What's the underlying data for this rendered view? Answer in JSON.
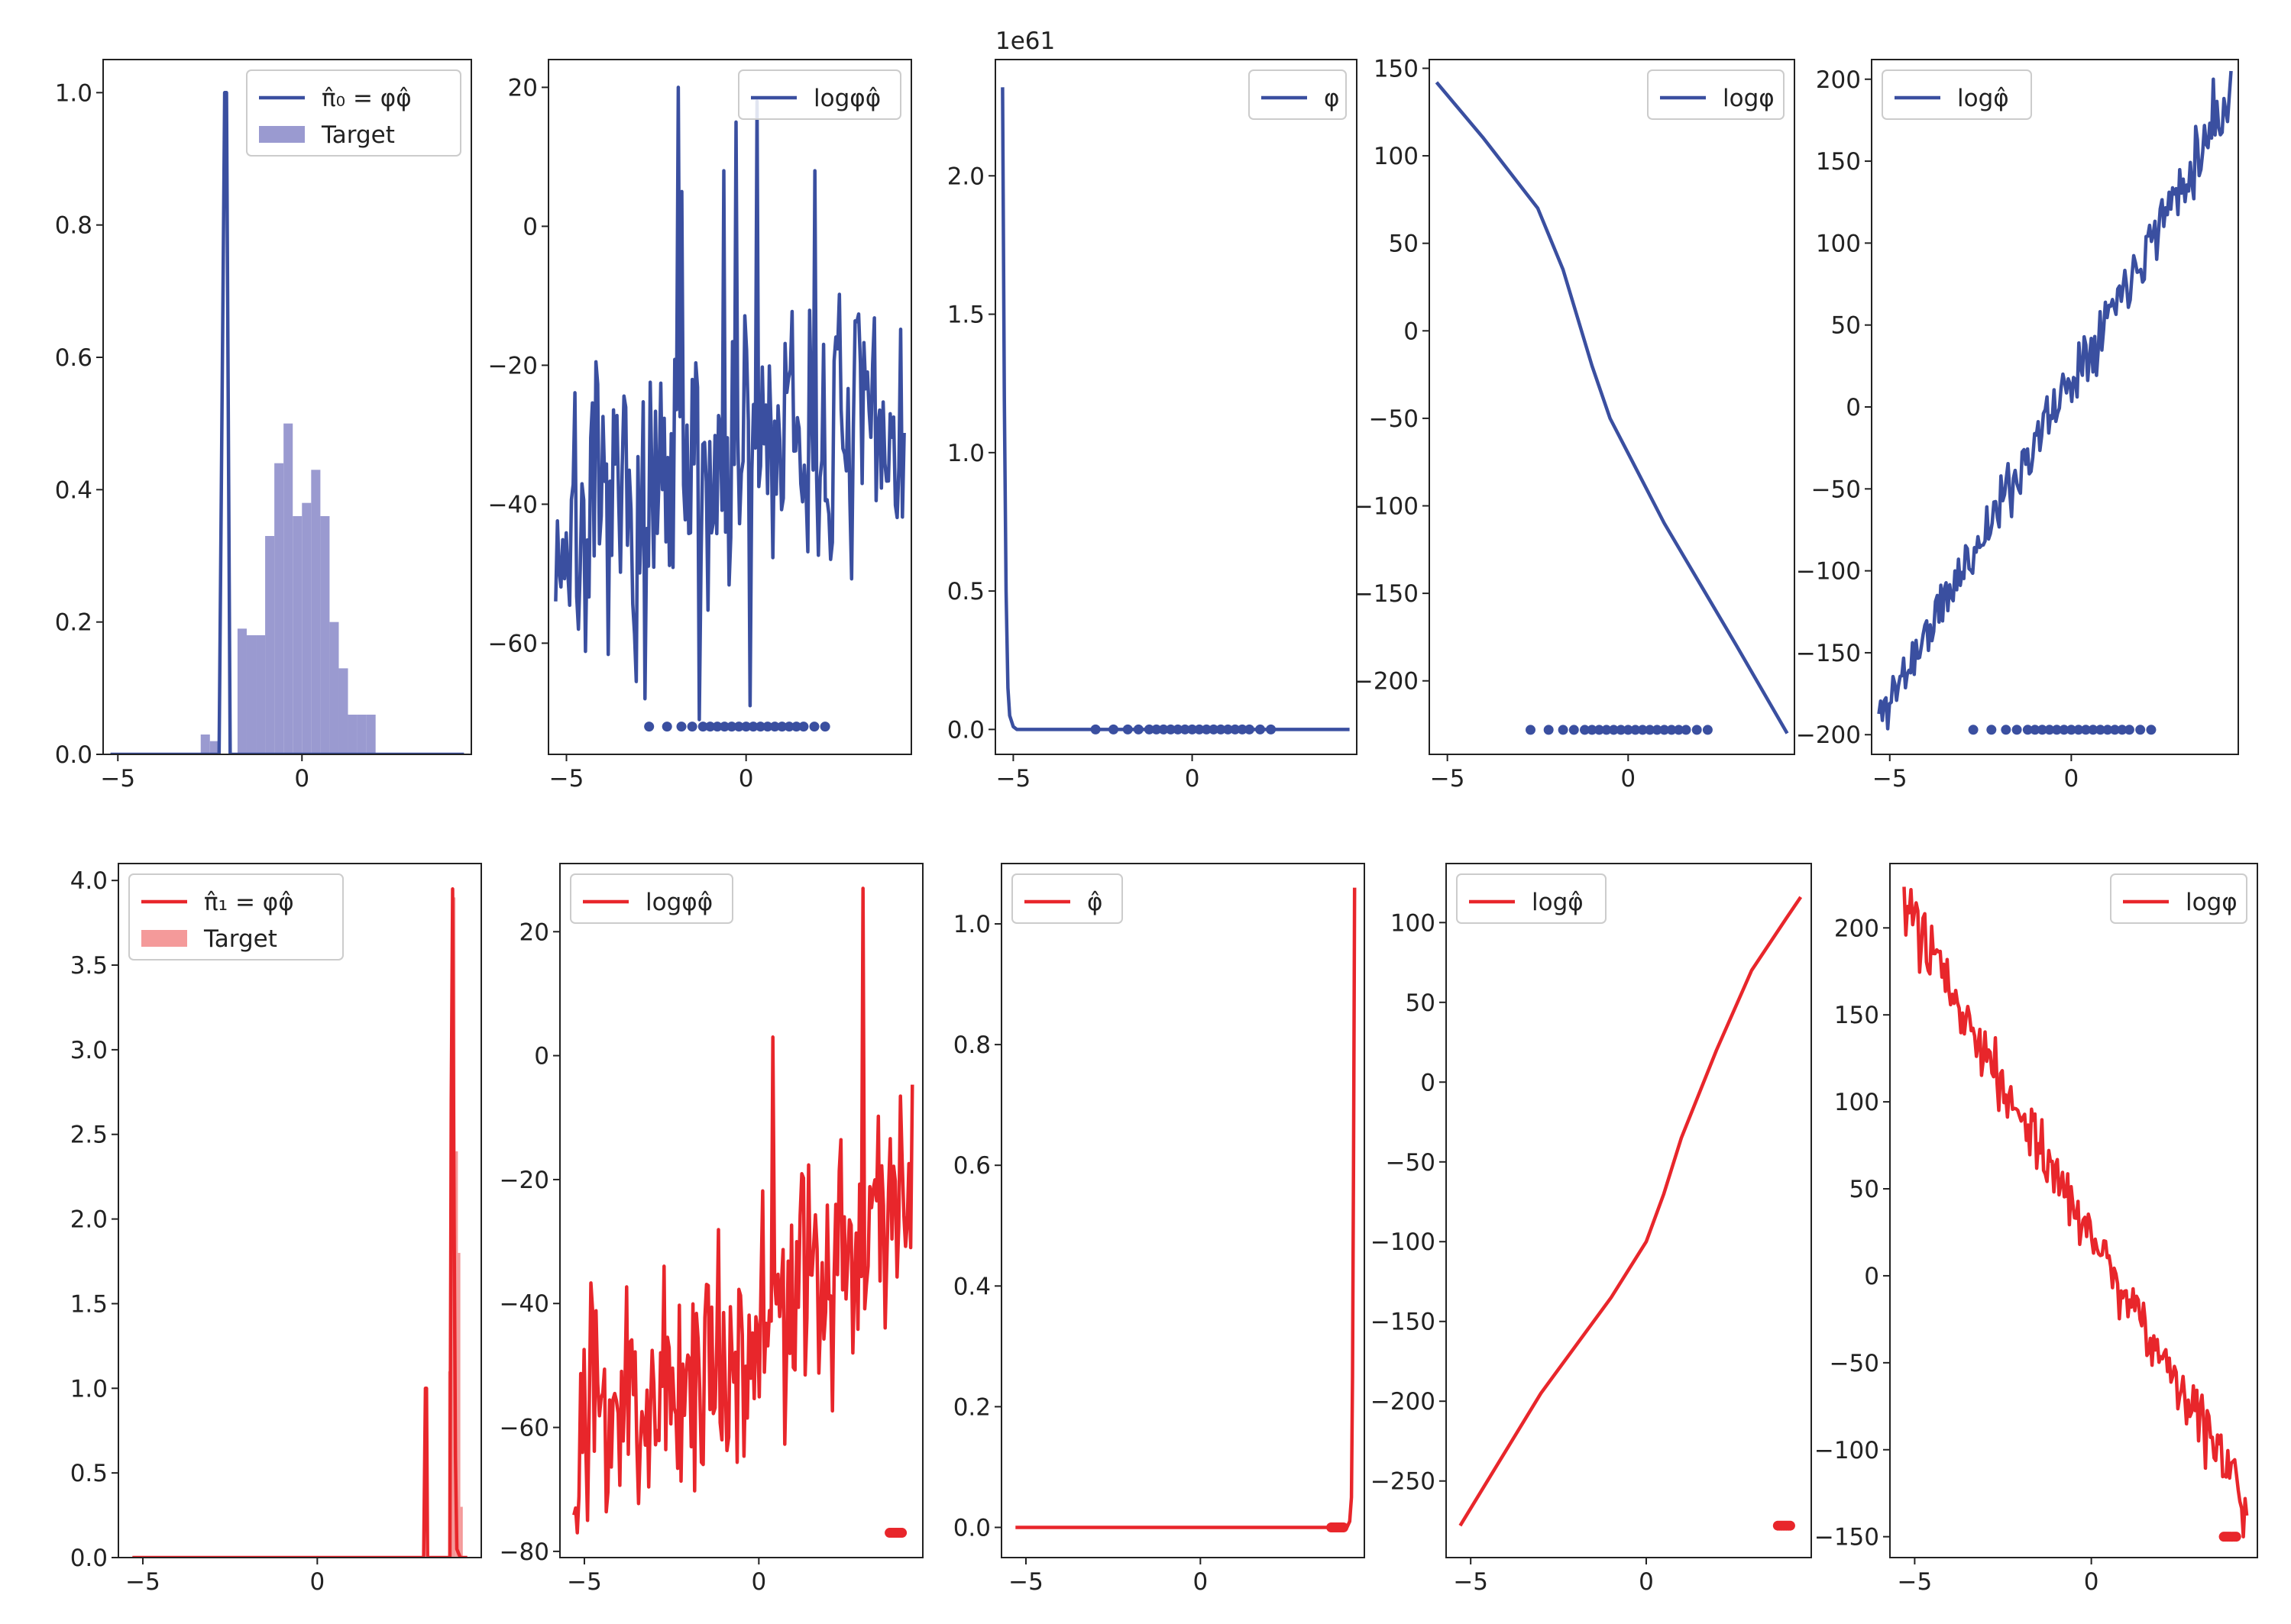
{
  "figure": {
    "layout": "2 rows x 5 columns"
  },
  "colors": {
    "blue": "#3a4fa0",
    "blue_fill": "#9a9ad0",
    "red": "#e8262b",
    "red_fill": "#f49a9a",
    "axis": "#222222",
    "background": "#ffffff"
  },
  "chart_data": [
    {
      "id": "r1c1",
      "type": "bar",
      "color": "blue",
      "xlim": [
        -5.4,
        4.6
      ],
      "ylim": [
        0,
        1.05
      ],
      "xticks": [
        {
          "v": -5,
          "label": "−5"
        },
        {
          "v": 0,
          "label": "0"
        }
      ],
      "yticks": [
        {
          "v": 0,
          "label": "0.0"
        },
        {
          "v": 0.2,
          "label": "0.2"
        },
        {
          "v": 0.4,
          "label": "0.4"
        },
        {
          "v": 0.6,
          "label": "0.6"
        },
        {
          "v": 0.8,
          "label": "0.8"
        },
        {
          "v": 1.0,
          "label": "1.0"
        }
      ],
      "histogram": {
        "name": "Target",
        "bin_width": 0.25,
        "edges": [
          -2.75,
          -2.5,
          -2.25,
          -2.0,
          -1.75,
          -1.5,
          -1.25,
          -1.0,
          -0.75,
          -0.5,
          -0.25,
          0.0,
          0.25,
          0.5,
          0.75,
          1.0,
          1.25,
          1.5,
          1.75,
          2.0
        ],
        "values": [
          0.03,
          0.02,
          0.0,
          0.0,
          0.19,
          0.18,
          0.18,
          0.33,
          0.44,
          0.5,
          0.36,
          0.38,
          0.43,
          0.36,
          0.2,
          0.13,
          0.06,
          0.06,
          0.06
        ]
      },
      "series": [
        {
          "name": "π̂₀ = φφ̂",
          "kind": "line",
          "x": [
            -5.2,
            -2.25,
            -2.1,
            -2.05,
            -1.95,
            4.4
          ],
          "y": [
            0.0,
            0.0,
            1.0,
            1.0,
            0.0,
            0.0
          ]
        }
      ],
      "legend": {
        "loc": "upper right",
        "entries": [
          "π̂₀ =  φφ̂",
          "Target"
        ]
      }
    },
    {
      "id": "r1c2",
      "type": "line",
      "color": "blue",
      "xlim": [
        -5.5,
        4.6
      ],
      "ylim": [
        -76,
        24
      ],
      "xticks": [
        {
          "v": -5,
          "label": "−5"
        },
        {
          "v": 0,
          "label": "0"
        }
      ],
      "yticks": [
        {
          "v": -60,
          "label": "−60"
        },
        {
          "v": -40,
          "label": "−40"
        },
        {
          "v": -20,
          "label": "−20"
        },
        {
          "v": 0,
          "label": "0"
        },
        {
          "v": 20,
          "label": "20"
        }
      ],
      "series": [
        {
          "name": "logφφ̂",
          "kind": "noisy",
          "x_start": -5.3,
          "x_end": 4.4,
          "n": 200,
          "seed": 7,
          "trend_x": [
            -5.3,
            -2.0,
            0.0,
            4.4
          ],
          "trend_y": [
            -45,
            -40,
            -32,
            -30
          ],
          "noise": 10,
          "spikes": [
            [
              -1.9,
              20
            ],
            [
              -1.8,
              5
            ],
            [
              -1.3,
              -71
            ],
            [
              0.3,
              18
            ],
            [
              -0.3,
              15
            ],
            [
              1.9,
              8
            ],
            [
              -2.8,
              -68
            ],
            [
              0.1,
              -69
            ],
            [
              -0.6,
              8
            ]
          ]
        }
      ],
      "rug": {
        "x": [
          -2.7,
          -2.2,
          -1.8,
          -1.5,
          -1.2,
          -1.0,
          -0.8,
          -0.6,
          -0.4,
          -0.2,
          0.0,
          0.2,
          0.4,
          0.6,
          0.8,
          1.0,
          1.2,
          1.4,
          1.6,
          1.9,
          2.2
        ],
        "y": -72
      },
      "legend": {
        "loc": "upper right",
        "entries": [
          "logφφ̂"
        ]
      }
    },
    {
      "id": "r1c3",
      "type": "line",
      "color": "blue",
      "xlim": [
        -5.5,
        4.6
      ],
      "ylim": [
        -0.09,
        2.42
      ],
      "offset_label": "1e61",
      "xticks": [
        {
          "v": -5,
          "label": "−5"
        },
        {
          "v": 0,
          "label": "0"
        }
      ],
      "yticks": [
        {
          "v": 0,
          "label": "0.0"
        },
        {
          "v": 0.5,
          "label": "0.5"
        },
        {
          "v": 1.0,
          "label": "1.0"
        },
        {
          "v": 1.5,
          "label": "1.5"
        },
        {
          "v": 2.0,
          "label": "2.0"
        }
      ],
      "series": [
        {
          "name": "φ",
          "kind": "line",
          "x": [
            -5.3,
            -5.25,
            -5.2,
            -5.15,
            -5.1,
            -5.0,
            -4.9,
            4.4
          ],
          "y": [
            2.32,
            1.2,
            0.5,
            0.15,
            0.05,
            0.01,
            0.0,
            0.0
          ]
        }
      ],
      "rug": {
        "x": [
          -2.7,
          -2.2,
          -1.8,
          -1.5,
          -1.2,
          -1.0,
          -0.8,
          -0.6,
          -0.4,
          -0.2,
          0.0,
          0.2,
          0.4,
          0.6,
          0.8,
          1.0,
          1.2,
          1.4,
          1.6,
          1.9,
          2.2
        ],
        "y": 0
      },
      "legend": {
        "loc": "upper right",
        "entries": [
          "φ"
        ]
      }
    },
    {
      "id": "r1c4",
      "type": "line",
      "color": "blue",
      "xlim": [
        -5.5,
        4.6
      ],
      "ylim": [
        -242,
        155
      ],
      "xticks": [
        {
          "v": -5,
          "label": "−5"
        },
        {
          "v": 0,
          "label": "0"
        }
      ],
      "yticks": [
        {
          "v": -200,
          "label": "−200"
        },
        {
          "v": -150,
          "label": "−150"
        },
        {
          "v": -100,
          "label": "−100"
        },
        {
          "v": -50,
          "label": "−50"
        },
        {
          "v": 0,
          "label": "0"
        },
        {
          "v": 50,
          "label": "50"
        },
        {
          "v": 100,
          "label": "100"
        },
        {
          "v": 150,
          "label": "150"
        }
      ],
      "series": [
        {
          "name": "logφ",
          "kind": "line",
          "x": [
            -5.3,
            -4.0,
            -2.5,
            -1.8,
            -1.0,
            -0.5,
            0.0,
            1.0,
            2.0,
            3.0,
            4.4
          ],
          "y": [
            142,
            110,
            70,
            35,
            -20,
            -50,
            -70,
            -110,
            -145,
            -180,
            -230
          ]
        }
      ],
      "rug": {
        "x": [
          -2.7,
          -2.2,
          -1.8,
          -1.5,
          -1.2,
          -1.0,
          -0.8,
          -0.6,
          -0.4,
          -0.2,
          0.0,
          0.2,
          0.4,
          0.6,
          0.8,
          1.0,
          1.2,
          1.4,
          1.6,
          1.9,
          2.2
        ],
        "y": -228
      },
      "legend": {
        "loc": "upper right",
        "entries": [
          "logφ"
        ]
      }
    },
    {
      "id": "r1c5",
      "type": "line",
      "color": "blue",
      "xlim": [
        -5.5,
        4.6
      ],
      "ylim": [
        -212,
        212
      ],
      "xticks": [
        {
          "v": -5,
          "label": "−5"
        },
        {
          "v": 0,
          "label": "0"
        }
      ],
      "yticks": [
        {
          "v": -200,
          "label": "−200"
        },
        {
          "v": -150,
          "label": "−150"
        },
        {
          "v": -100,
          "label": "−100"
        },
        {
          "v": -50,
          "label": "−50"
        },
        {
          "v": 0,
          "label": "0"
        },
        {
          "v": 50,
          "label": "50"
        },
        {
          "v": 100,
          "label": "100"
        },
        {
          "v": 150,
          "label": "150"
        },
        {
          "v": 200,
          "label": "200"
        }
      ],
      "series": [
        {
          "name": "logφ̂",
          "kind": "noisy",
          "x_start": -5.3,
          "x_end": 4.4,
          "n": 200,
          "seed": 11,
          "trend_x": [
            -5.3,
            4.4
          ],
          "trend_y": [
            -190,
            190
          ],
          "noise": 9,
          "spikes": [
            [
              4.4,
              205
            ],
            [
              3.9,
              200
            ]
          ]
        }
      ],
      "rug": {
        "x": [
          -2.7,
          -2.2,
          -1.8,
          -1.5,
          -1.2,
          -1.0,
          -0.8,
          -0.6,
          -0.4,
          -0.2,
          0.0,
          0.2,
          0.4,
          0.6,
          0.8,
          1.0,
          1.2,
          1.4,
          1.6,
          1.9,
          2.2
        ],
        "y": -197
      },
      "legend": {
        "loc": "upper left",
        "entries": [
          "logφ̂"
        ]
      }
    },
    {
      "id": "r2c1",
      "type": "bar",
      "color": "red",
      "xlim": [
        -5.7,
        4.7
      ],
      "ylim": [
        0,
        4.1
      ],
      "xticks": [
        {
          "v": -5,
          "label": "−5"
        },
        {
          "v": 0,
          "label": "0"
        }
      ],
      "yticks": [
        {
          "v": 0,
          "label": "0.0"
        },
        {
          "v": 0.5,
          "label": "0.5"
        },
        {
          "v": 1.0,
          "label": "1.0"
        },
        {
          "v": 1.5,
          "label": "1.5"
        },
        {
          "v": 2.0,
          "label": "2.0"
        },
        {
          "v": 2.5,
          "label": "2.5"
        },
        {
          "v": 3.0,
          "label": "3.0"
        },
        {
          "v": 3.5,
          "label": "3.5"
        },
        {
          "v": 4.0,
          "label": "4.0"
        }
      ],
      "histogram": {
        "name": "Target",
        "bin_width": 0.07,
        "edges": [
          3.75,
          3.82,
          3.89,
          3.96,
          4.03,
          4.1,
          4.17
        ],
        "values": [
          1.1,
          2.9,
          3.9,
          2.4,
          1.8,
          0.3
        ]
      },
      "series": [
        {
          "name": "π̂₁ = φφ̂",
          "kind": "line",
          "x": [
            -5.3,
            3.05,
            3.1,
            3.13,
            3.16,
            3.8,
            3.84,
            3.88,
            3.92,
            3.96,
            4.0,
            4.1,
            4.3
          ],
          "y": [
            0.0,
            0.0,
            1.0,
            1.0,
            0.0,
            0.0,
            2.7,
            3.95,
            2.0,
            0.6,
            0.05,
            0.0,
            0.0
          ]
        }
      ],
      "legend": {
        "loc": "upper left",
        "entries": [
          "π̂₁ =  φφ̂",
          "Target"
        ]
      }
    },
    {
      "id": "r2c2",
      "type": "line",
      "color": "red",
      "xlim": [
        -5.7,
        4.7
      ],
      "ylim": [
        -81,
        31
      ],
      "xticks": [
        {
          "v": -5,
          "label": "−5"
        },
        {
          "v": 0,
          "label": "0"
        }
      ],
      "yticks": [
        {
          "v": -80,
          "label": "−80"
        },
        {
          "v": -60,
          "label": "−60"
        },
        {
          "v": -40,
          "label": "−40"
        },
        {
          "v": -20,
          "label": "−20"
        },
        {
          "v": 0,
          "label": "0"
        },
        {
          "v": 20,
          "label": "20"
        }
      ],
      "series": [
        {
          "name": "logφφ̂",
          "kind": "noisy",
          "x_start": -5.3,
          "x_end": 4.4,
          "n": 200,
          "seed": 23,
          "trend_x": [
            -5.3,
            -2.0,
            0.0,
            2.0,
            4.4
          ],
          "trend_y": [
            -60,
            -52,
            -45,
            -35,
            -18
          ],
          "noise": 10,
          "spikes": [
            [
              0.4,
              3
            ],
            [
              3.0,
              27
            ],
            [
              -5.2,
              -77
            ],
            [
              -4.9,
              -75
            ]
          ]
        }
      ],
      "rug": {
        "x": [
          3.75,
          3.8,
          3.85,
          3.9,
          3.95,
          4.0,
          4.05,
          4.1
        ],
        "y": -77
      },
      "legend": {
        "loc": "upper left",
        "entries": [
          "logφφ̂"
        ]
      }
    },
    {
      "id": "r2c3",
      "type": "line",
      "color": "red",
      "xlim": [
        -5.7,
        4.7
      ],
      "ylim": [
        -0.05,
        1.1
      ],
      "xticks": [
        {
          "v": -5,
          "label": "−5"
        },
        {
          "v": 0,
          "label": "0"
        }
      ],
      "yticks": [
        {
          "v": 0,
          "label": "0.0"
        },
        {
          "v": 0.2,
          "label": "0.2"
        },
        {
          "v": 0.4,
          "label": "0.4"
        },
        {
          "v": 0.6,
          "label": "0.6"
        },
        {
          "v": 0.8,
          "label": "0.8"
        },
        {
          "v": 1.0,
          "label": "1.0"
        }
      ],
      "series": [
        {
          "name": "φ̂",
          "kind": "line",
          "x": [
            -5.3,
            4.2,
            4.28,
            4.33,
            4.36,
            4.39,
            4.42
          ],
          "y": [
            0.0,
            0.0,
            0.01,
            0.05,
            0.25,
            0.6,
            1.06
          ]
        }
      ],
      "rug": {
        "x": [
          3.75,
          3.8,
          3.85,
          3.9,
          3.95,
          4.0,
          4.05,
          4.1
        ],
        "y": 0
      },
      "legend": {
        "loc": "upper left",
        "entries": [
          "φ̂"
        ]
      }
    },
    {
      "id": "r2c4",
      "type": "line",
      "color": "red",
      "xlim": [
        -5.7,
        4.7
      ],
      "ylim": [
        -298,
        137
      ],
      "xticks": [
        {
          "v": -5,
          "label": "−5"
        },
        {
          "v": 0,
          "label": "0"
        }
      ],
      "yticks": [
        {
          "v": -250,
          "label": "−250"
        },
        {
          "v": -200,
          "label": "−200"
        },
        {
          "v": -150,
          "label": "−150"
        },
        {
          "v": -100,
          "label": "−100"
        },
        {
          "v": -50,
          "label": "−50"
        },
        {
          "v": 0,
          "label": "0"
        },
        {
          "v": 50,
          "label": "50"
        },
        {
          "v": 100,
          "label": "100"
        }
      ],
      "series": [
        {
          "name": "logφ̂",
          "kind": "line",
          "x": [
            -5.3,
            -3.0,
            -1.0,
            0.0,
            0.5,
            1.0,
            2.0,
            3.0,
            4.0,
            4.4
          ],
          "y": [
            -278,
            -195,
            -135,
            -100,
            -70,
            -35,
            20,
            70,
            103,
            116
          ]
        }
      ],
      "rug": {
        "x": [
          3.75,
          3.8,
          3.85,
          3.9,
          3.95,
          4.0,
          4.05,
          4.1
        ],
        "y": -278
      },
      "legend": {
        "loc": "upper left",
        "entries": [
          "logφ̂"
        ]
      }
    },
    {
      "id": "r2c5",
      "type": "line",
      "color": "red",
      "xlim": [
        -5.7,
        4.7
      ],
      "ylim": [
        -162,
        237
      ],
      "xticks": [
        {
          "v": -5,
          "label": "−5"
        },
        {
          "v": 0,
          "label": "0"
        }
      ],
      "yticks": [
        {
          "v": -150,
          "label": "−150"
        },
        {
          "v": -100,
          "label": "−100"
        },
        {
          "v": -50,
          "label": "−50"
        },
        {
          "v": 0,
          "label": "0"
        },
        {
          "v": 50,
          "label": "50"
        },
        {
          "v": 100,
          "label": "100"
        },
        {
          "v": 150,
          "label": "150"
        },
        {
          "v": 200,
          "label": "200"
        }
      ],
      "series": [
        {
          "name": "logφ",
          "kind": "noisy",
          "x_start": -5.3,
          "x_end": 4.4,
          "n": 200,
          "seed": 31,
          "trend_x": [
            -5.3,
            4.4
          ],
          "trend_y": [
            210,
            -130
          ],
          "noise": 9,
          "spikes": [
            [
              -5.1,
              222
            ],
            [
              4.3,
              -150
            ]
          ]
        }
      ],
      "rug": {
        "x": [
          3.75,
          3.8,
          3.85,
          3.9,
          3.95,
          4.0,
          4.05,
          4.1
        ],
        "y": -150
      },
      "legend": {
        "loc": "upper right",
        "entries": [
          "logφ"
        ]
      }
    }
  ]
}
